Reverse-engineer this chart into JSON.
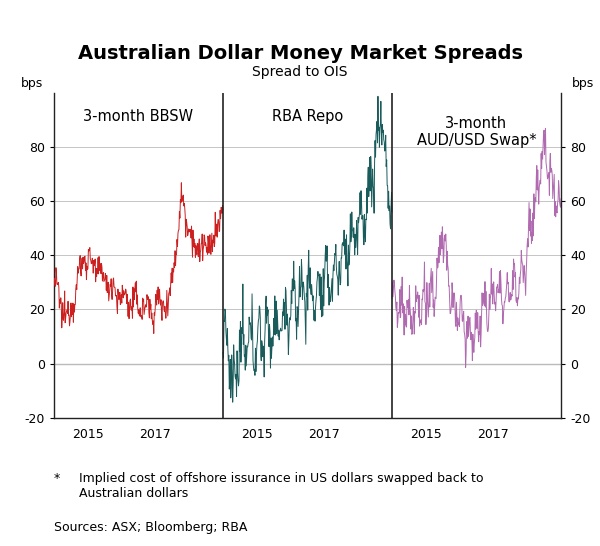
{
  "title": "Australian Dollar Money Market Spreads",
  "subtitle": "Spread to OIS",
  "ylabel_left": "bps",
  "ylabel_right": "bps",
  "ylim": [
    -20,
    100
  ],
  "yticks": [
    -20,
    0,
    20,
    40,
    60,
    80
  ],
  "panel_labels": [
    "3-month BBSW",
    "RBA Repo",
    "3-month\nAUD/USD Swap*"
  ],
  "x_tick_labels": [
    "2015",
    "2017",
    "2015",
    "2017",
    "2015",
    "2017"
  ],
  "footnote_star": "*",
  "footnote_text": "    Implied cost of offshore issurance in US dollars swapped back to\n    Australian dollars",
  "sources": "Sources: ASX; Bloomberg; RBA",
  "color_bbsw": "#CC2020",
  "color_repo": "#1A5C5C",
  "color_swap": "#B06AB0",
  "background_color": "#FFFFFF",
  "grid_color": "#BBBBBB",
  "divider_color": "#222222",
  "spine_color": "#222222"
}
